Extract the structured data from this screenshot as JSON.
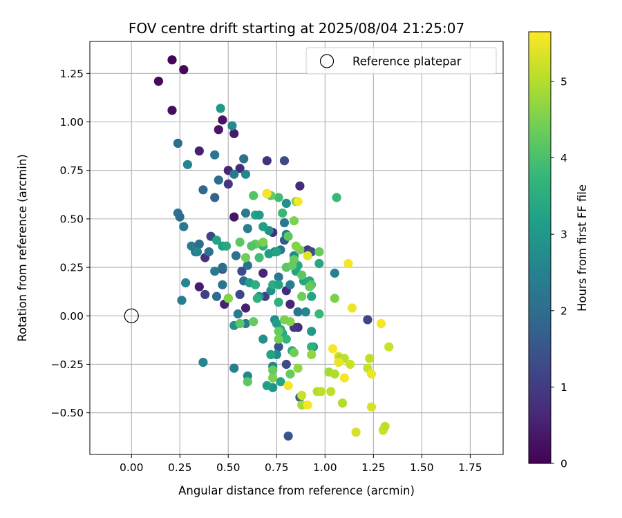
{
  "chart_data": {
    "type": "scatter",
    "title": "FOV centre drift starting at 2025/08/04 21:25:07",
    "xlabel": "Angular distance from reference (arcmin)",
    "ylabel": "Rotation from reference (arcmin)",
    "xlim": [
      -0.215,
      1.92
    ],
    "ylim": [
      -0.715,
      1.415
    ],
    "xticks": [
      0.0,
      0.25,
      0.5,
      0.75,
      1.0,
      1.25,
      1.5,
      1.75
    ],
    "xtick_labels": [
      "0.00",
      "0.25",
      "0.50",
      "0.75",
      "1.00",
      "1.25",
      "1.50",
      "1.75"
    ],
    "yticks": [
      -0.5,
      -0.25,
      0.0,
      0.25,
      0.5,
      0.75,
      1.0,
      1.25
    ],
    "ytick_labels": [
      "−0.50",
      "−0.25",
      "0.00",
      "0.25",
      "0.50",
      "0.75",
      "1.00",
      "1.25"
    ],
    "grid": true,
    "legend": {
      "placement": "top-right",
      "entries": [
        "Reference platepar"
      ]
    },
    "reference_point": {
      "x": 0.0,
      "y": 0.0,
      "label": "Reference platepar"
    },
    "colorbar": {
      "label": "Hours from first FF file",
      "colormap": "viridis",
      "range": [
        0,
        5.65
      ],
      "ticks": [
        0,
        1,
        2,
        3,
        4,
        5
      ],
      "tick_labels": [
        "0",
        "1",
        "2",
        "3",
        "4",
        "5"
      ]
    },
    "colormap_stops": [
      "#440154",
      "#482878",
      "#3e4989",
      "#31688e",
      "#26828e",
      "#1f9e89",
      "#35b779",
      "#6ece58",
      "#b5de2b",
      "#fde725"
    ],
    "series": [
      {
        "points": [
          [
            0.21,
            1.32,
            0.05
          ],
          [
            0.27,
            1.27,
            0.1
          ],
          [
            0.14,
            1.21,
            0.15
          ],
          [
            0.21,
            1.06,
            0.2
          ],
          [
            0.47,
            1.01,
            0.3
          ],
          [
            0.45,
            0.96,
            0.35
          ],
          [
            0.53,
            0.94,
            0.4
          ],
          [
            0.35,
            0.85,
            0.5
          ],
          [
            0.5,
            0.75,
            0.6
          ],
          [
            0.56,
            0.76,
            0.7
          ],
          [
            0.7,
            0.8,
            0.8
          ],
          [
            0.5,
            0.68,
            0.9
          ],
          [
            0.87,
            0.67,
            0.7
          ],
          [
            0.53,
            0.51,
            0.3
          ],
          [
            0.35,
            0.15,
            0.45
          ],
          [
            0.48,
            0.06,
            0.55
          ],
          [
            0.59,
            0.04,
            0.5
          ],
          [
            0.8,
            0.13,
            0.65
          ],
          [
            0.82,
            0.06,
            0.6
          ],
          [
            0.86,
            -0.06,
            0.7
          ],
          [
            0.84,
            -0.06,
            0.9
          ],
          [
            0.81,
            -0.62,
            1.5
          ],
          [
            0.79,
            0.8,
            1.3
          ],
          [
            0.47,
            0.24,
            1.4
          ],
          [
            0.57,
            0.23,
            1.3
          ],
          [
            0.41,
            0.41,
            1.2
          ],
          [
            0.38,
            0.11,
            1.1
          ],
          [
            0.38,
            0.3,
            0.8
          ],
          [
            0.68,
            0.22,
            0.6
          ],
          [
            0.73,
            0.43,
            0.8
          ],
          [
            0.91,
            0.34,
            1.0
          ],
          [
            0.93,
            0.33,
            1.3
          ],
          [
            0.56,
            0.11,
            1.2
          ],
          [
            0.69,
            0.1,
            1.1
          ],
          [
            0.8,
            -0.25,
            1.3
          ],
          [
            0.76,
            -0.16,
            1.5
          ],
          [
            0.79,
            0.39,
            1.6
          ],
          [
            1.22,
            -0.02,
            1.2
          ],
          [
            0.87,
            -0.42,
            1.8
          ],
          [
            0.24,
            0.89,
            2.0
          ],
          [
            0.29,
            0.78,
            2.6
          ],
          [
            0.43,
            0.83,
            2.2
          ],
          [
            0.37,
            0.65,
            1.9
          ],
          [
            0.43,
            0.61,
            1.8
          ],
          [
            0.45,
            0.7,
            2.0
          ],
          [
            0.53,
            0.73,
            2.3
          ],
          [
            0.58,
            0.81,
            2.1
          ],
          [
            0.59,
            0.73,
            2.6
          ],
          [
            0.24,
            0.53,
            2.1
          ],
          [
            0.25,
            0.51,
            2.0
          ],
          [
            0.27,
            0.46,
            2.3
          ],
          [
            0.31,
            0.36,
            2.4
          ],
          [
            0.33,
            0.33,
            2.2
          ],
          [
            0.35,
            0.37,
            2.0
          ],
          [
            0.34,
            0.33,
            2.6
          ],
          [
            0.4,
            0.33,
            2.1
          ],
          [
            0.43,
            0.23,
            2.3
          ],
          [
            0.47,
            0.25,
            2.0
          ],
          [
            0.26,
            0.08,
            2.4
          ],
          [
            0.28,
            0.17,
            2.6
          ],
          [
            0.44,
            0.1,
            2.0
          ],
          [
            0.47,
            0.16,
            2.2
          ],
          [
            0.5,
            0.09,
            2.8
          ],
          [
            0.52,
            0.98,
            2.7
          ],
          [
            0.54,
            0.31,
            2.1
          ],
          [
            0.6,
            0.45,
            2.4
          ],
          [
            0.59,
            0.53,
            2.3
          ],
          [
            0.6,
            0.26,
            2.1
          ],
          [
            0.58,
            0.18,
            2.0
          ],
          [
            0.55,
            0.01,
            2.3
          ],
          [
            0.59,
            -0.04,
            2.4
          ],
          [
            0.53,
            -0.05,
            2.9
          ],
          [
            0.53,
            -0.27,
            2.4
          ],
          [
            0.6,
            -0.31,
            2.6
          ],
          [
            0.68,
            -0.12,
            2.8
          ],
          [
            0.7,
            0.63,
            2.3
          ],
          [
            0.77,
            0.34,
            2.2
          ],
          [
            0.79,
            0.48,
            2.3
          ],
          [
            0.8,
            0.58,
            2.8
          ],
          [
            0.84,
            0.31,
            2.6
          ],
          [
            0.82,
            0.16,
            2.4
          ],
          [
            0.86,
            0.02,
            2.2
          ],
          [
            0.9,
            0.02,
            2.6
          ],
          [
            0.93,
            -0.08,
            3.0
          ],
          [
            1.05,
            0.22,
            2.5
          ],
          [
            0.37,
            -0.24,
            2.6
          ],
          [
            0.75,
            -0.2,
            2.7
          ],
          [
            0.73,
            -0.26,
            2.5
          ],
          [
            0.74,
            -0.02,
            2.8
          ],
          [
            0.71,
            0.44,
            2.9
          ],
          [
            0.66,
            0.1,
            2.9
          ],
          [
            0.72,
            0.13,
            2.8
          ],
          [
            0.76,
            0.2,
            2.3
          ],
          [
            0.8,
            0.42,
            2.4
          ],
          [
            0.74,
            0.33,
            2.2
          ],
          [
            0.94,
            -0.16,
            3.0
          ],
          [
            0.73,
            -0.37,
            2.9
          ],
          [
            0.46,
            1.07,
            3.0
          ],
          [
            0.47,
            0.36,
            3.2
          ],
          [
            0.44,
            0.39,
            3.3
          ],
          [
            0.49,
            0.36,
            3.4
          ],
          [
            0.61,
            0.17,
            3.2
          ],
          [
            0.64,
            0.52,
            3.3
          ],
          [
            0.66,
            0.52,
            3.1
          ],
          [
            0.68,
            0.46,
            3.2
          ],
          [
            0.68,
            0.36,
            3.6
          ],
          [
            0.71,
            0.32,
            3.1
          ],
          [
            0.75,
            0.33,
            3.3
          ],
          [
            0.78,
            0.53,
            3.8
          ],
          [
            0.66,
            0.3,
            3.9
          ],
          [
            0.64,
            0.16,
            3.5
          ],
          [
            0.65,
            0.09,
            3.6
          ],
          [
            0.73,
            0.16,
            3.5
          ],
          [
            0.76,
            0.16,
            3.3
          ],
          [
            0.76,
            0.07,
            3.6
          ],
          [
            0.77,
            -0.07,
            3.5
          ],
          [
            0.78,
            -0.09,
            3.4
          ],
          [
            0.8,
            -0.12,
            3.7
          ],
          [
            0.83,
            -0.18,
            3.5
          ],
          [
            0.77,
            -0.34,
            3.3
          ],
          [
            0.75,
            -0.04,
            3.1
          ],
          [
            0.72,
            -0.2,
            3.3
          ],
          [
            0.7,
            -0.36,
            3.2
          ],
          [
            0.85,
            0.23,
            3.3
          ],
          [
            0.86,
            0.26,
            3.4
          ],
          [
            0.89,
            0.18,
            3.3
          ],
          [
            0.92,
            0.18,
            3.4
          ],
          [
            0.93,
            0.1,
            3.3
          ],
          [
            0.97,
            0.27,
            3.4
          ],
          [
            0.97,
            0.01,
            3.8
          ],
          [
            0.93,
            -0.16,
            3.6
          ],
          [
            1.06,
            0.61,
            3.8
          ],
          [
            0.76,
            0.61,
            3.9
          ],
          [
            0.8,
            0.25,
            4.2
          ],
          [
            0.85,
            0.59,
            4.4
          ],
          [
            0.87,
            0.34,
            4.5
          ],
          [
            0.88,
            0.21,
            4.2
          ],
          [
            0.93,
            0.16,
            4.1
          ],
          [
            0.97,
            0.33,
            4.3
          ],
          [
            1.05,
            0.09,
            4.5
          ],
          [
            0.7,
            0.63,
            4.8
          ],
          [
            0.68,
            0.38,
            4.5
          ],
          [
            0.64,
            0.37,
            4.3
          ],
          [
            0.62,
            0.36,
            4.1
          ],
          [
            0.56,
            0.38,
            4.2
          ],
          [
            0.59,
            0.3,
            4.4
          ],
          [
            0.63,
            0.62,
            4.1
          ],
          [
            0.72,
            0.62,
            4.3
          ],
          [
            0.81,
            0.41,
            4.2
          ],
          [
            0.83,
            0.26,
            4.3
          ],
          [
            0.84,
            0.49,
            4.5
          ],
          [
            0.84,
            0.29,
            4.3
          ],
          [
            0.85,
            0.36,
            4.6
          ],
          [
            0.88,
            0.1,
            4.4
          ],
          [
            0.84,
            -0.19,
            4.4
          ],
          [
            0.82,
            -0.3,
            4.3
          ],
          [
            0.82,
            -0.03,
            4.6
          ],
          [
            0.79,
            -0.02,
            4.5
          ],
          [
            0.76,
            -0.08,
            4.3
          ],
          [
            0.76,
            -0.12,
            4.4
          ],
          [
            0.73,
            -0.32,
            4.5
          ],
          [
            0.73,
            -0.28,
            4.3
          ],
          [
            0.6,
            -0.34,
            4.2
          ],
          [
            0.63,
            -0.03,
            4.3
          ],
          [
            0.56,
            -0.04,
            4.2
          ],
          [
            0.5,
            0.09,
            4.6
          ],
          [
            0.86,
            -0.27,
            4.7
          ],
          [
            0.88,
            -0.46,
            4.9
          ],
          [
            0.93,
            -0.2,
            4.7
          ],
          [
            0.96,
            -0.39,
            5.0
          ],
          [
            0.98,
            -0.39,
            5.1
          ],
          [
            1.02,
            -0.29,
            4.9
          ],
          [
            1.03,
            -0.39,
            5.1
          ],
          [
            1.05,
            -0.3,
            5.0
          ],
          [
            1.07,
            -0.21,
            5.3
          ],
          [
            1.08,
            -0.22,
            4.9
          ],
          [
            1.1,
            -0.22,
            5.1
          ],
          [
            1.09,
            -0.45,
            5.0
          ],
          [
            1.13,
            -0.25,
            5.2
          ],
          [
            1.16,
            -0.6,
            5.3
          ],
          [
            1.22,
            -0.27,
            5.2
          ],
          [
            1.23,
            -0.22,
            5.1
          ],
          [
            1.24,
            -0.47,
            5.3
          ],
          [
            1.3,
            -0.59,
            5.2
          ],
          [
            1.31,
            -0.57,
            5.1
          ],
          [
            1.33,
            -0.16,
            5.2
          ],
          [
            0.88,
            -0.41,
            5.2
          ],
          [
            0.91,
            -0.46,
            5.6
          ],
          [
            0.92,
            0.15,
            4.3
          ],
          [
            0.81,
            -0.36,
            5.6
          ],
          [
            1.04,
            -0.17,
            5.6
          ],
          [
            1.07,
            -0.24,
            5.5
          ],
          [
            1.1,
            -0.32,
            5.6
          ],
          [
            1.12,
            0.27,
            5.6
          ],
          [
            1.24,
            -0.3,
            5.5
          ],
          [
            1.29,
            -0.04,
            5.6
          ],
          [
            1.14,
            0.04,
            5.5
          ],
          [
            0.86,
            0.59,
            5.6
          ],
          [
            0.91,
            0.31,
            5.4
          ],
          [
            0.7,
            0.63,
            5.6
          ]
        ]
      }
    ]
  }
}
